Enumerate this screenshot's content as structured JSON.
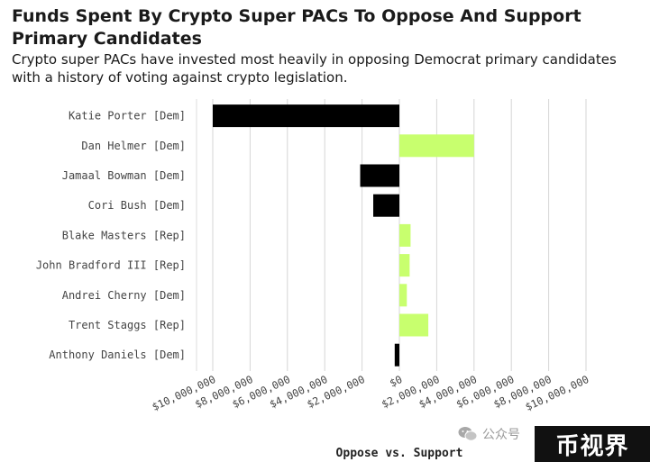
{
  "header": {
    "title": "Funds Spent By Crypto Super PACs To Oppose And Support Primary Candidates",
    "subtitle": "Crypto super PACs have invested most heavily in opposing Democrat primary candidates with a history of voting against crypto legislation."
  },
  "colors": {
    "oppose": "#000000",
    "support": "#c8ff6e",
    "grid": "#d6d6d6",
    "tick_text": "#444444"
  },
  "chart_data": {
    "type": "bar",
    "orientation": "horizontal",
    "title": "Funds Spent By Crypto Super PACs To Oppose And Support Primary Candidates",
    "subtitle": "Crypto super PACs have invested most heavily in opposing Democrat primary candidates with a history of voting against crypto legislation.",
    "xlabel": "Oppose vs. Support",
    "ylabel": "",
    "xlim": [
      -10000000,
      10000000
    ],
    "x_ticks": [
      -10000000,
      -8000000,
      -6000000,
      -4000000,
      -2000000,
      0,
      2000000,
      4000000,
      6000000,
      8000000,
      10000000
    ],
    "x_tick_labels": [
      "$10,000,000",
      "$8,000,000",
      "$6,000,000",
      "$4,000,000",
      "$2,000,000",
      "$0",
      "$2,000,000",
      "$4,000,000",
      "$6,000,000",
      "$8,000,000",
      "$10,000,000"
    ],
    "grid": true,
    "legend": "none",
    "categories": [
      "Katie Porter [Dem]",
      "Dan Helmer [Dem]",
      "Jamaal Bowman [Dem]",
      "Cori Bush [Dem]",
      "Blake Masters [Rep]",
      "John Bradford III [Rep]",
      "Andrei Cherny [Dem]",
      "Trent Staggs [Rep]",
      "Anthony Daniels [Dem]"
    ],
    "values": [
      -10000000,
      4000000,
      -2100000,
      -1400000,
      600000,
      550000,
      400000,
      1550000,
      -250000
    ]
  },
  "watermark": {
    "wechat_text": "公众号",
    "logo_text": "币视界"
  }
}
